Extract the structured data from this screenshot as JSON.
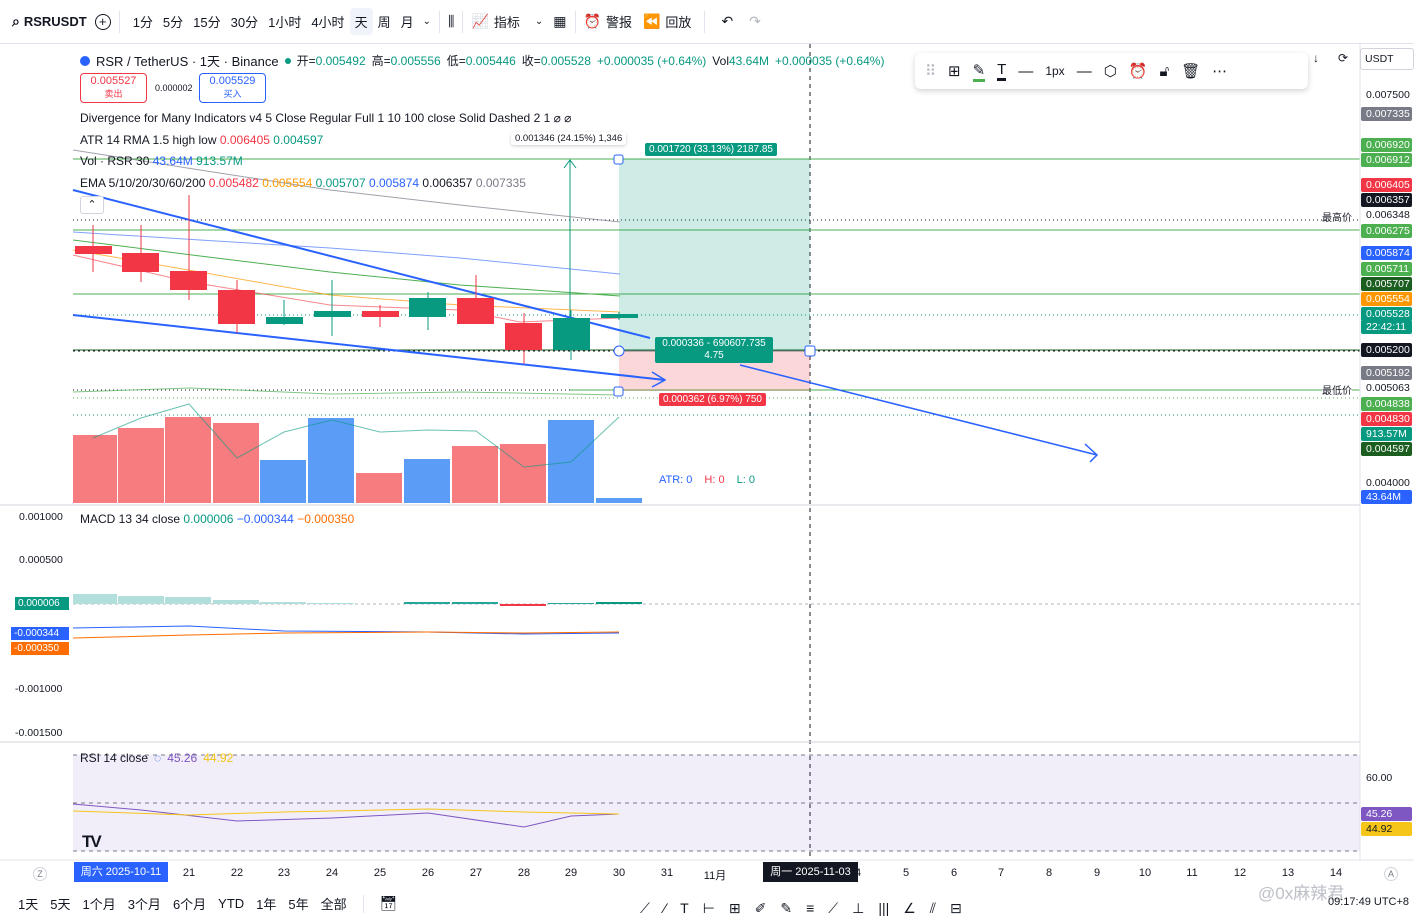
{
  "toolbar": {
    "symbol": "RSRUSDT",
    "intervals": [
      "1分",
      "5分",
      "15分",
      "30分",
      "1小时",
      "4小时",
      "天",
      "周",
      "月"
    ],
    "active_interval": "天",
    "indicators_label": "指标",
    "alert_label": "警报",
    "replay_label": "回放"
  },
  "draw_toolbar": {
    "line_width_label": "1px"
  },
  "top_right": {
    "currency": "USDT"
  },
  "legend": {
    "symbol_line": "RSR / TetherUS · 1天 · Binance",
    "open_label": "开=",
    "open": "0.005492",
    "high_label": "高=",
    "high": "0.005556",
    "low_label": "低=",
    "low": "0.005446",
    "close_label": "收=",
    "close": "0.005528",
    "change": "+0.000035 (+0.64%)",
    "vol_label": "Vol",
    "vol": "43.64M",
    "vol_change": "+0.000035 (+0.64%)",
    "sell_price": "0.005527",
    "sell_label": "卖出",
    "spread": "0.000002",
    "buy_price": "0.005529",
    "buy_label": "买入",
    "divergence": "Divergence for Many Indicators v4 5 Close Regular Full 1 10 100 close Solid Dashed 2 1  ⌀  ⌀",
    "atr_name": "ATR 14 RMA 1.5 high low",
    "atr_v1": "0.006405",
    "atr_v2": "0.004597",
    "vol_rsr_name": "Vol · RSR 30",
    "vol_rsr_v1": "43.64M",
    "vol_rsr_v2": "913.57M",
    "ema_name": "EMA 5/10/20/30/60/200",
    "ema_vals": [
      "0.005482",
      "0.005554",
      "0.005707",
      "0.005874",
      "0.006357",
      "0.007335"
    ],
    "collapse_icon": "chevron-up-icon"
  },
  "position_tool": {
    "ruler_label": "0.001346 (24.15%) 1,346",
    "target_label": "0.001720 (33.13%) 2187.85",
    "entry_label_1": "0.000336 - 690607.735",
    "entry_label_2": "4.75",
    "stop_label": "0.000362 (6.97%) 750"
  },
  "atr_readout": {
    "atr": "ATR: 0",
    "h": "H: 0",
    "l": "L: 0"
  },
  "price_axis": {
    "labels": [
      {
        "text": "0.007500"
      },
      {
        "text": "0.004000"
      }
    ],
    "tags": [
      {
        "text": "0.007335",
        "bg": "#787b86"
      },
      {
        "text": "0.006920",
        "bg": "#4caf50"
      },
      {
        "text": "0.006912",
        "bg": "#4caf50"
      },
      {
        "text": "0.006405",
        "bg": "#f23645"
      },
      {
        "text": "0.006357",
        "bg": "#131722"
      },
      {
        "text": "0.006348",
        "bg": "#ffffff"
      },
      {
        "text": "0.006275",
        "bg": "#4caf50"
      },
      {
        "text": "0.005874",
        "bg": "#2962ff"
      },
      {
        "text": "0.005711",
        "bg": "#4caf50"
      },
      {
        "text": "0.005707",
        "bg": "#1b5e20"
      },
      {
        "text": "0.005554",
        "bg": "#ff9800"
      },
      {
        "text": "0.005528",
        "bg": "#089981"
      },
      {
        "text": "22:42:11",
        "bg": "#089981"
      },
      {
        "text": "0.005200",
        "bg": "#131722"
      },
      {
        "text": "0.005192",
        "bg": "#787b86"
      },
      {
        "text": "0.005063",
        "bg": "#ffffff"
      },
      {
        "text": "0.004838",
        "bg": "#4caf50"
      },
      {
        "text": "0.004830",
        "bg": "#f23645"
      },
      {
        "text": "913.57M",
        "bg": "#089981"
      },
      {
        "text": "0.004597",
        "bg": "#1b5e20"
      },
      {
        "text": "43.64M",
        "bg": "#2962ff"
      }
    ],
    "high_label": "最高价",
    "low_label": "最低价"
  },
  "macd": {
    "name": "MACD 13 34 close",
    "v1": "0.000006",
    "v2": "−0.000344",
    "v3": "−0.000350",
    "axis": [
      "0.001000",
      "0.000500",
      "-0.001000",
      "-0.001500"
    ],
    "tag_hist": "0.000006",
    "tag_macd": "-0.000344",
    "tag_signal": "-0.000350"
  },
  "rsi": {
    "name": "RSI 14 close",
    "v1": "45.26",
    "v2": "44.92",
    "axis_60": "60.00",
    "tag1": "45.26",
    "tag2": "44.92"
  },
  "time_axis": {
    "start_label": "周六 2025-10-11",
    "cursor_label": "周一 2025-11-03",
    "ticks": [
      "21",
      "22",
      "23",
      "24",
      "25",
      "26",
      "27",
      "28",
      "29",
      "30",
      "31",
      "11月",
      "4",
      "5",
      "6",
      "7",
      "8",
      "9",
      "10",
      "11",
      "12",
      "13",
      "14"
    ],
    "z": "Z",
    "a": "A"
  },
  "range_bar": {
    "ranges": [
      "1天",
      "5天",
      "1个月",
      "3个月",
      "6个月",
      "YTD",
      "1年",
      "5年",
      "全部"
    ],
    "clock": "09:17:49 UTC+8",
    "watermark": "@0x麻辣君"
  }
}
